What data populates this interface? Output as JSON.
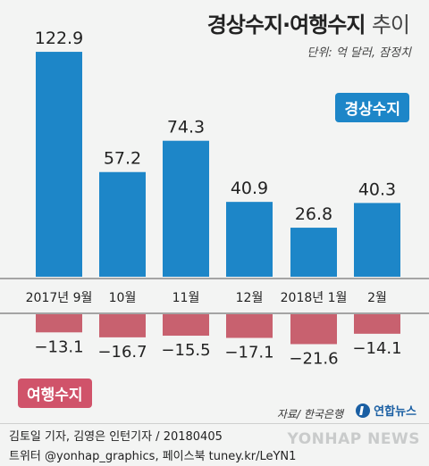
{
  "header": {
    "title_main": "경상수지·여행수지",
    "title_tail": "추이",
    "unit": "단위: 억 달러, 잠정치"
  },
  "chart_data": {
    "type": "bar",
    "categories": [
      "2017년 9월",
      "10월",
      "11월",
      "12월",
      "2018년 1월",
      "2월"
    ],
    "series": [
      {
        "name": "경상수지",
        "values": [
          122.9,
          57.2,
          74.3,
          40.9,
          26.8,
          40.3
        ],
        "color": "#1d86c8"
      },
      {
        "name": "여행수지",
        "values": [
          -13.1,
          -16.7,
          -15.5,
          -17.1,
          -21.6,
          -14.1
        ],
        "color": "#c8616f"
      }
    ],
    "value_labels_current": [
      "122.9",
      "57.2",
      "74.3",
      "40.9",
      "26.8",
      "40.3"
    ],
    "value_labels_travel": [
      "−13.1",
      "−16.7",
      "−15.5",
      "−17.1",
      "−21.6",
      "−14.1"
    ]
  },
  "legend": {
    "current_account": "경상수지",
    "travel_account": "여행수지"
  },
  "footer": {
    "source": "자료/ 한국은행",
    "logo": "연합뉴스",
    "credit_line1": "김토일 기자, 김영은 인턴기자 / 20180405",
    "credit_line2": "트위터 @yonhap_graphics, 페이스북 tuney.kr/LeYN1",
    "watermark": "YONHAP NEWS"
  }
}
